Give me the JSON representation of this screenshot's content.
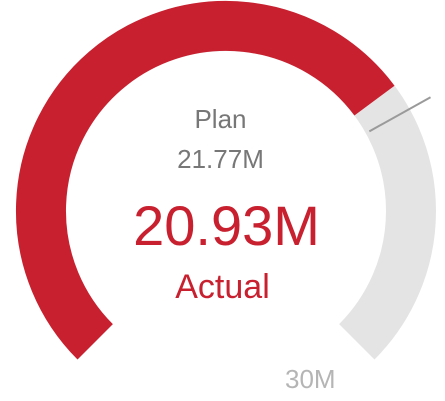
{
  "chart_data": {
    "type": "gauge",
    "min": 0,
    "max": 30,
    "max_label": "30M",
    "actual": 20.93,
    "actual_label": "Actual",
    "actual_display": "20.93M",
    "plan": 21.77,
    "plan_label": "Plan",
    "plan_display": "21.77M",
    "colors": {
      "actual": "#c8202f",
      "remaining": "#e4e4e4",
      "plan_marker": "#9a9a9a",
      "plan_text": "#777777",
      "max_text": "#b5b5b5"
    }
  }
}
